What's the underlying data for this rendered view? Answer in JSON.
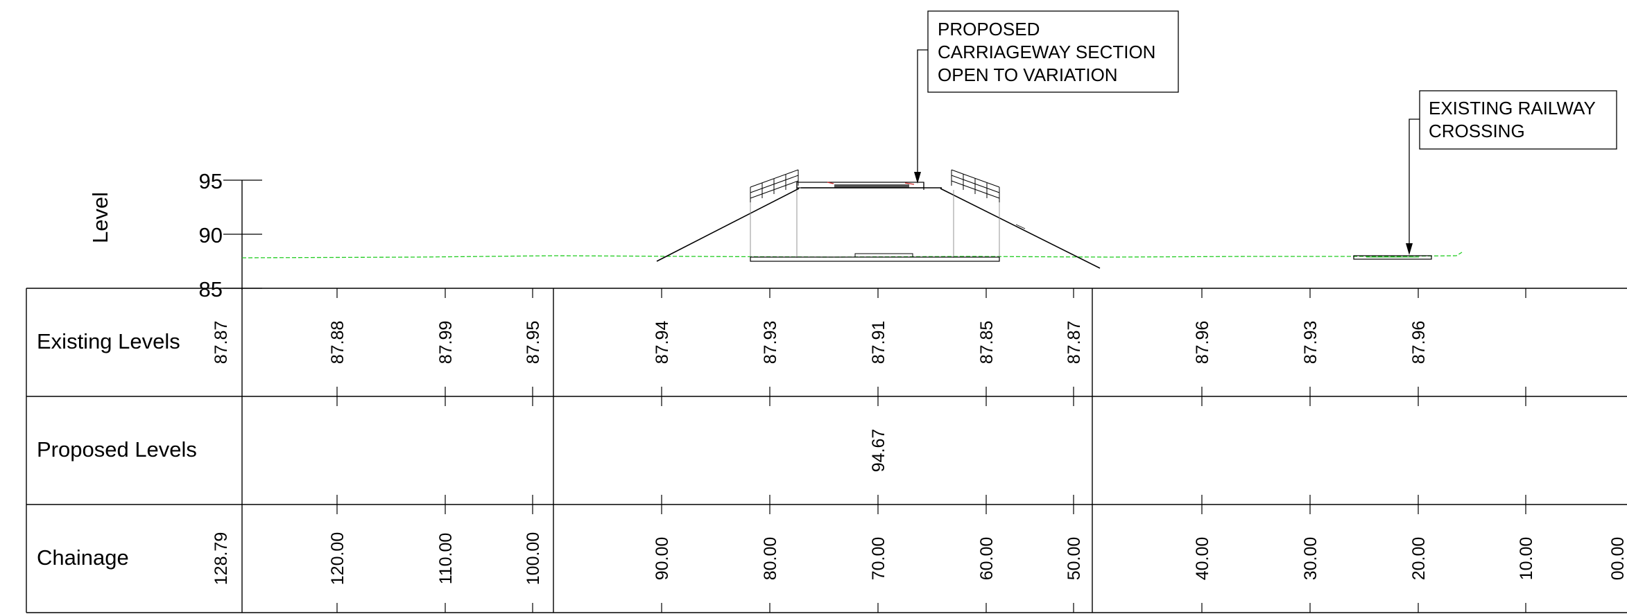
{
  "axis": {
    "label": "Level",
    "ticks": [
      {
        "value": 95,
        "label": "95"
      },
      {
        "value": 90,
        "label": "90"
      },
      {
        "value": 85,
        "label": "85"
      }
    ]
  },
  "notes": {
    "carriageway": [
      "PROPOSED",
      "CARRIAGEWAY SECTION",
      "OPEN TO VARIATION"
    ],
    "railway": [
      "EXISTING RAILWAY",
      "CROSSING"
    ]
  },
  "rows": {
    "existing": "Existing Levels",
    "proposed": "Proposed Levels",
    "chainage": "Chainage"
  },
  "stations": [
    {
      "chainage": "128.79",
      "existing": "87.87",
      "proposed": ""
    },
    {
      "chainage": "120.00",
      "existing": "87.88",
      "proposed": ""
    },
    {
      "chainage": "110.00",
      "existing": "87.99",
      "proposed": ""
    },
    {
      "chainage": "100.00",
      "existing": "87.95",
      "proposed": ""
    },
    {
      "chainage": "90.00",
      "existing": "87.94",
      "proposed": ""
    },
    {
      "chainage": "80.00",
      "existing": "87.93",
      "proposed": ""
    },
    {
      "chainage": "70.00",
      "existing": "87.91",
      "proposed": "94.67"
    },
    {
      "chainage": "60.00",
      "existing": "87.85",
      "proposed": ""
    },
    {
      "chainage": "50.00",
      "existing": "87.87",
      "proposed": ""
    },
    {
      "chainage": "40.00",
      "existing": "87.96",
      "proposed": ""
    },
    {
      "chainage": "30.00",
      "existing": "87.93",
      "proposed": ""
    },
    {
      "chainage": "20.00",
      "existing": "87.96",
      "proposed": ""
    },
    {
      "chainage": "10.00",
      "existing": "",
      "proposed": ""
    },
    {
      "chainage": "00.00",
      "existing": "",
      "proposed": ""
    }
  ],
  "colors": {
    "existing_ground": "#22cc22",
    "linework": "#000000",
    "detail_accent": "#cc2222"
  }
}
